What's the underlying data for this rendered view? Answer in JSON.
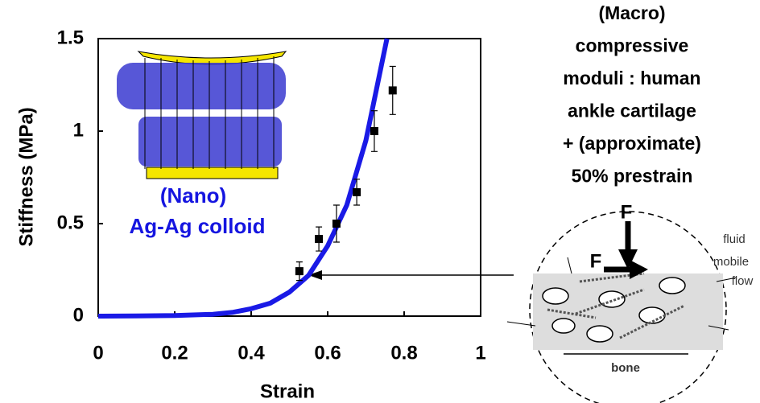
{
  "chart_data": {
    "type": "line",
    "xlabel": "Strain",
    "ylabel": "Stiffness (MPa)",
    "xlim": [
      0,
      1
    ],
    "ylim": [
      0,
      1.5
    ],
    "xticks": [
      0,
      0.2,
      0.4,
      0.6,
      0.8,
      1
    ],
    "yticks": [
      0,
      0.5,
      1,
      1.5
    ],
    "series": [
      {
        "type": "line",
        "color": "#1a1ae6",
        "x": [
          0,
          0.1,
          0.2,
          0.3,
          0.35,
          0.4,
          0.45,
          0.5,
          0.55,
          0.6,
          0.65,
          0.7,
          0.75,
          0.755
        ],
        "values": [
          0,
          0.001,
          0.003,
          0.01,
          0.02,
          0.04,
          0.07,
          0.13,
          0.22,
          0.38,
          0.6,
          0.95,
          1.45,
          1.5
        ]
      },
      {
        "type": "scatter",
        "color": "#000000",
        "x": [
          0.526,
          0.577,
          0.623,
          0.676,
          0.722,
          0.77
        ],
        "values": [
          0.243,
          0.417,
          0.5,
          0.67,
          1.0,
          1.22
        ],
        "errors": [
          0.05,
          0.065,
          0.1,
          0.07,
          0.11,
          0.13
        ]
      }
    ],
    "nano_label": [
      "(Nano)",
      "Ag-Ag colloid"
    ],
    "macro_label": [
      "(Macro)",
      "compressive",
      "moduli : human",
      "ankle cartilage",
      "+ (approximate)",
      "50% prestrain"
    ],
    "diagram_labels": {
      "force_down": "F",
      "force_shear": "F",
      "fluid": [
        "fluid",
        "mobile",
        "flow"
      ],
      "bone": "bone"
    }
  }
}
